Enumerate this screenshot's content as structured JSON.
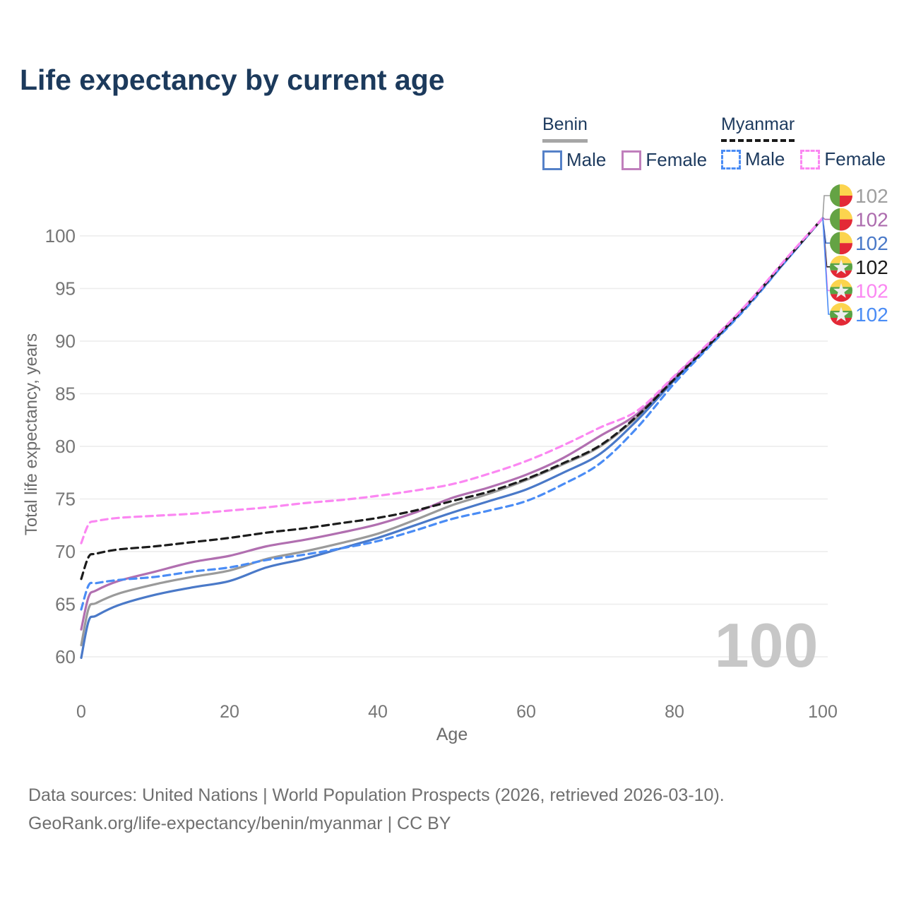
{
  "title": "Life expectancy by current age",
  "watermark_age": "100",
  "legend": {
    "groups": [
      {
        "label": "Benin",
        "line_style": "solid",
        "underline_color": "#a6a6a6",
        "items": [
          {
            "label": "Male",
            "color": "#4a79c8",
            "dashed": false
          },
          {
            "label": "Female",
            "color": "#b16fb0",
            "dashed": false
          }
        ]
      },
      {
        "label": "Myanmar",
        "line_style": "dashed",
        "underline_color": "#1a1a1a",
        "items": [
          {
            "label": "Male",
            "color": "#4a8cf5",
            "dashed": true
          },
          {
            "label": "Female",
            "color": "#fb87f2",
            "dashed": true
          }
        ]
      }
    ]
  },
  "axes": {
    "x": {
      "label": "Age",
      "ticks": [
        0,
        20,
        40,
        60,
        80,
        100
      ],
      "range": [
        0,
        100
      ]
    },
    "y": {
      "label": "Total life expectancy, years",
      "ticks": [
        60,
        65,
        70,
        75,
        80,
        85,
        90,
        95,
        100
      ],
      "range": [
        60,
        102
      ]
    }
  },
  "end_labels": [
    {
      "flag": "benin-flag-icon",
      "label": "102",
      "color": "#9e9e9e"
    },
    {
      "flag": "benin-flag-icon",
      "label": "102",
      "color": "#ad6cae"
    },
    {
      "flag": "benin-flag-icon",
      "label": "102",
      "color": "#4a79c8"
    },
    {
      "flag": "myanmar-flag-icon",
      "label": "102",
      "color": "#1a1a1a"
    },
    {
      "flag": "myanmar-flag-icon",
      "label": "102",
      "color": "#fb87f2"
    },
    {
      "flag": "myanmar-flag-icon",
      "label": "102",
      "color": "#4a8cf5"
    }
  ],
  "footer": {
    "line1": "Data sources: United Nations | World Population Prospects (2026, retrieved 2026-03-10).",
    "line2": "GeoRank.org/life-expectancy/benin/myanmar | CC BY"
  },
  "colors": {
    "title": "#1c3a5c",
    "grid": "#ececec",
    "tick_text": "#767676",
    "watermark": "#c7c7c7",
    "benin_male": "#4a79c8",
    "benin_female": "#b16fb0",
    "benin_total": "#9a9a9a",
    "myanmar_male": "#4a8cf5",
    "myanmar_female": "#fb87f2",
    "myanmar_total": "#1c1c1c"
  },
  "chart_data": {
    "type": "line",
    "title": "Life expectancy by current age",
    "xlabel": "Age",
    "ylabel": "Total life expectancy, years",
    "xlim": [
      0,
      100
    ],
    "ylim": [
      58,
      103
    ],
    "grid": true,
    "legend_position": "top-right",
    "x": [
      0,
      1,
      2,
      5,
      10,
      15,
      20,
      25,
      30,
      35,
      40,
      45,
      50,
      55,
      60,
      65,
      70,
      75,
      80,
      85,
      90,
      95,
      100
    ],
    "series": [
      {
        "name": "Benin Total",
        "key": "benin-total",
        "color": "#9a9a9a",
        "dashed": false,
        "values": [
          61.1,
          64.6,
          65.1,
          66.0,
          66.9,
          67.6,
          68.2,
          69.3,
          70.0,
          70.8,
          71.7,
          73.0,
          74.4,
          75.5,
          76.8,
          78.3,
          80.0,
          82.8,
          86.4,
          89.9,
          93.6,
          97.7,
          101.7
        ],
        "end_label": "102"
      },
      {
        "name": "Benin Male",
        "key": "benin-male",
        "color": "#4a79c8",
        "dashed": false,
        "values": [
          59.9,
          63.4,
          63.9,
          64.9,
          65.9,
          66.6,
          67.2,
          68.5,
          69.3,
          70.3,
          71.3,
          72.5,
          73.7,
          74.8,
          75.9,
          77.5,
          79.3,
          82.5,
          86.3,
          89.8,
          93.5,
          97.6,
          101.7
        ],
        "end_label": "102"
      },
      {
        "name": "Benin Female",
        "key": "benin-female",
        "color": "#b16fb0",
        "dashed": false,
        "values": [
          62.6,
          65.7,
          66.3,
          67.2,
          68.1,
          69.0,
          69.6,
          70.5,
          71.1,
          71.8,
          72.6,
          73.7,
          75.1,
          76.1,
          77.3,
          78.9,
          81.0,
          83.1,
          86.6,
          90.0,
          93.7,
          97.7,
          101.7
        ],
        "end_label": "102"
      },
      {
        "name": "Myanmar Male",
        "key": "myanmar-male",
        "color": "#4a8cf5",
        "dashed": true,
        "values": [
          64.5,
          66.8,
          67.0,
          67.3,
          67.6,
          68.1,
          68.5,
          69.2,
          69.7,
          70.3,
          71.0,
          72.0,
          73.1,
          73.9,
          74.8,
          76.4,
          78.4,
          81.8,
          86.0,
          89.7,
          93.4,
          97.6,
          101.7
        ],
        "end_label": "102"
      },
      {
        "name": "Myanmar Total",
        "key": "myanmar-total",
        "color": "#1c1c1c",
        "dashed": true,
        "values": [
          67.4,
          69.5,
          69.8,
          70.2,
          70.5,
          70.9,
          71.3,
          71.8,
          72.2,
          72.7,
          73.2,
          73.9,
          74.8,
          75.7,
          76.9,
          78.4,
          80.1,
          82.9,
          86.4,
          89.9,
          93.6,
          97.7,
          101.7
        ],
        "end_label": "102"
      },
      {
        "name": "Myanmar Female",
        "key": "myanmar-female",
        "color": "#fb87f2",
        "dashed": true,
        "values": [
          70.8,
          72.6,
          72.9,
          73.2,
          73.4,
          73.6,
          73.9,
          74.2,
          74.6,
          74.9,
          75.3,
          75.8,
          76.4,
          77.4,
          78.6,
          80.1,
          81.8,
          83.4,
          86.7,
          90.1,
          93.7,
          97.8,
          101.7
        ],
        "end_label": "102"
      }
    ]
  }
}
